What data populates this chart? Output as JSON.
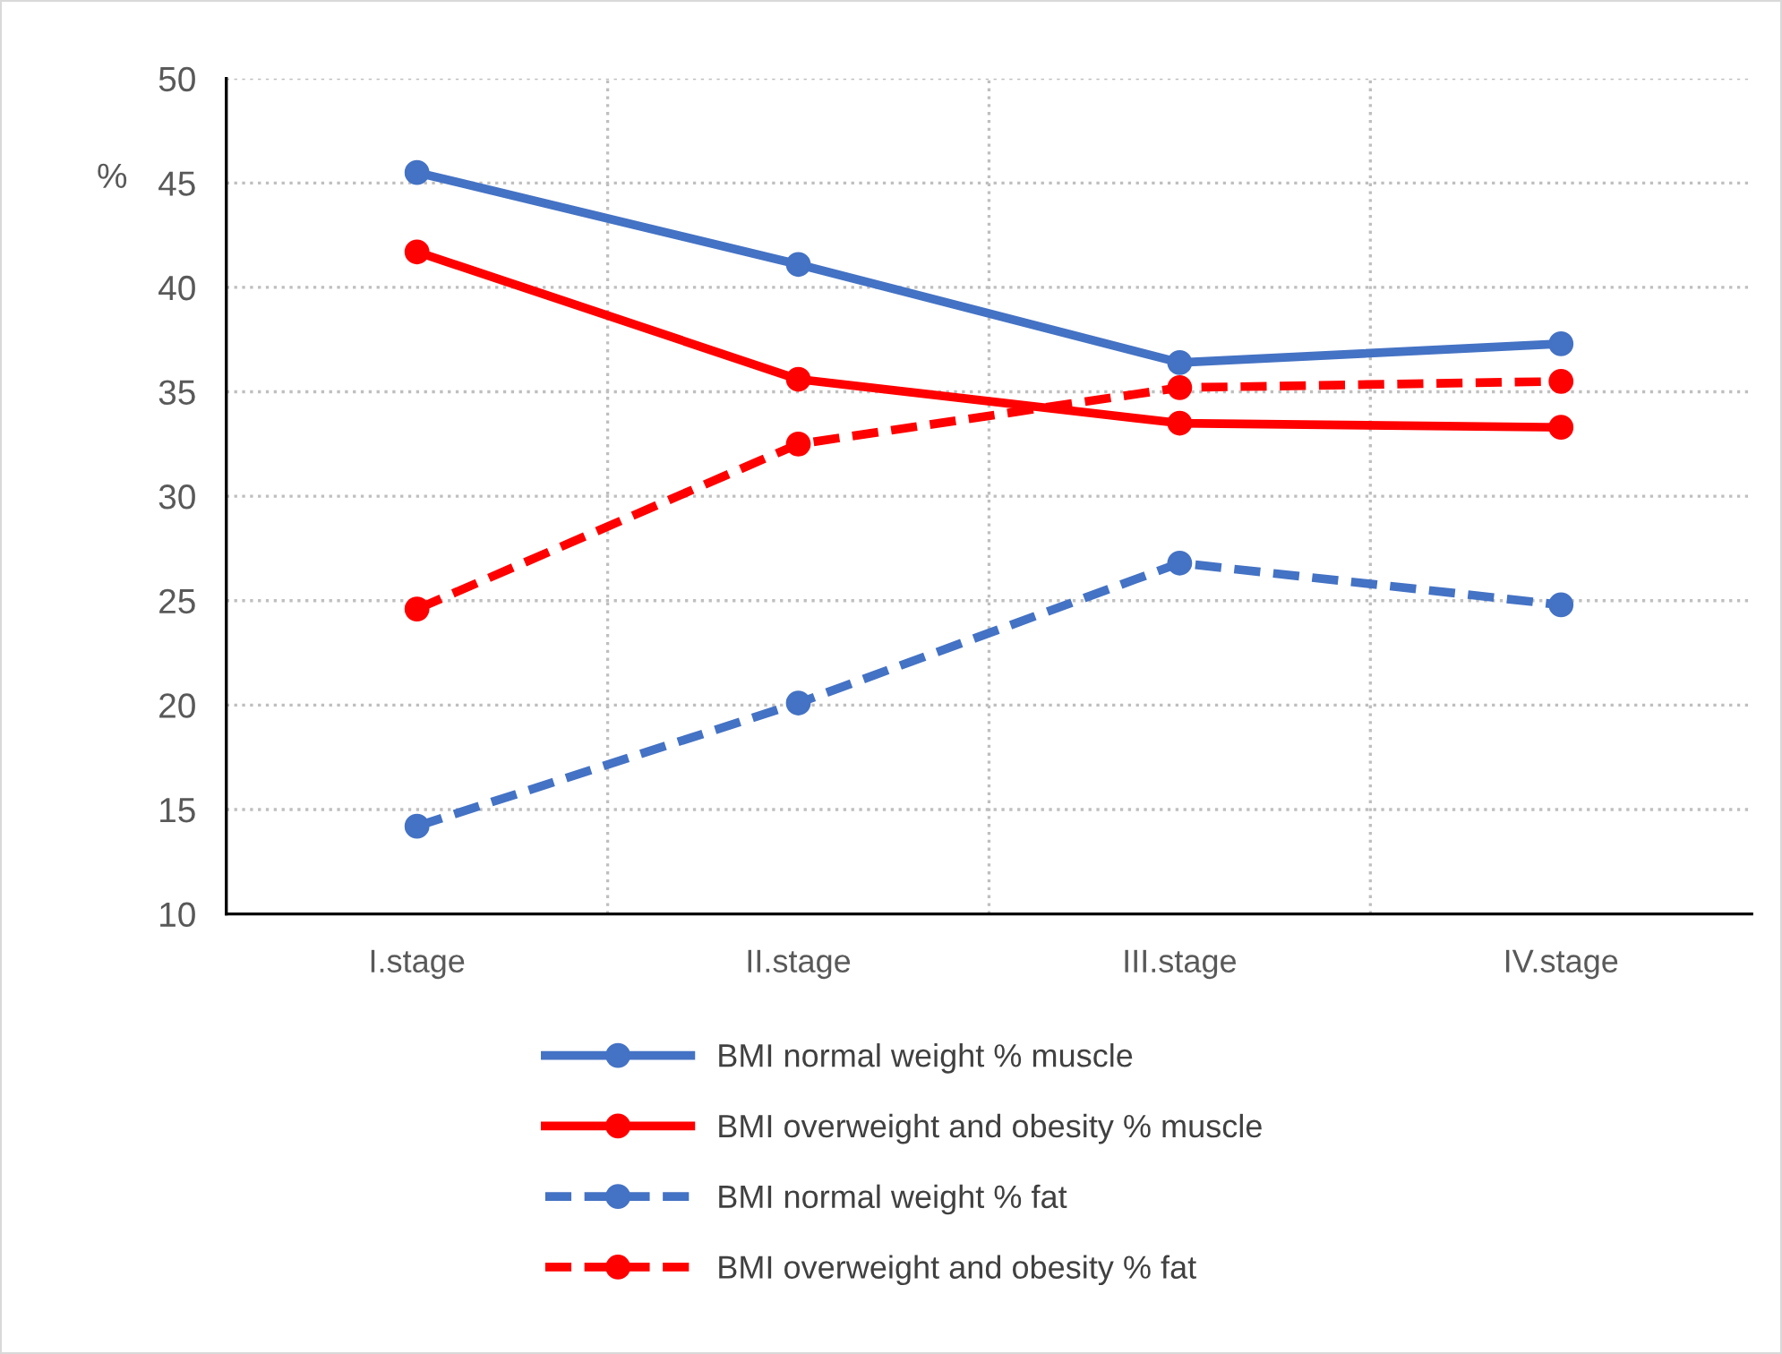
{
  "chart_data": {
    "type": "line",
    "ylabel": "%",
    "categories": [
      "I.stage",
      "II.stage",
      "III.stage",
      "IV.stage"
    ],
    "series": [
      {
        "name": "BMI normal weight % muscle",
        "color": "#4472c4",
        "line_style": "solid",
        "values": [
          45.5,
          41.1,
          36.4,
          37.3
        ]
      },
      {
        "name": "BMI overweight and obesity % muscle",
        "color": "#ff0000",
        "line_style": "solid",
        "values": [
          41.7,
          35.6,
          33.5,
          33.3
        ]
      },
      {
        "name": "BMI normal weight % fat",
        "color": "#4472c4",
        "line_style": "dashed",
        "values": [
          14.2,
          20.1,
          26.8,
          24.8
        ]
      },
      {
        "name": "BMI overweight and obesity % fat",
        "color": "#ff0000",
        "line_style": "dashed",
        "values": [
          24.6,
          32.5,
          35.2,
          35.5
        ]
      }
    ],
    "ylim": [
      10,
      50
    ],
    "yticks": [
      10,
      15,
      20,
      25,
      30,
      35,
      40,
      45,
      50
    ],
    "grid": true,
    "legend": "bottom",
    "marker": "circle"
  }
}
